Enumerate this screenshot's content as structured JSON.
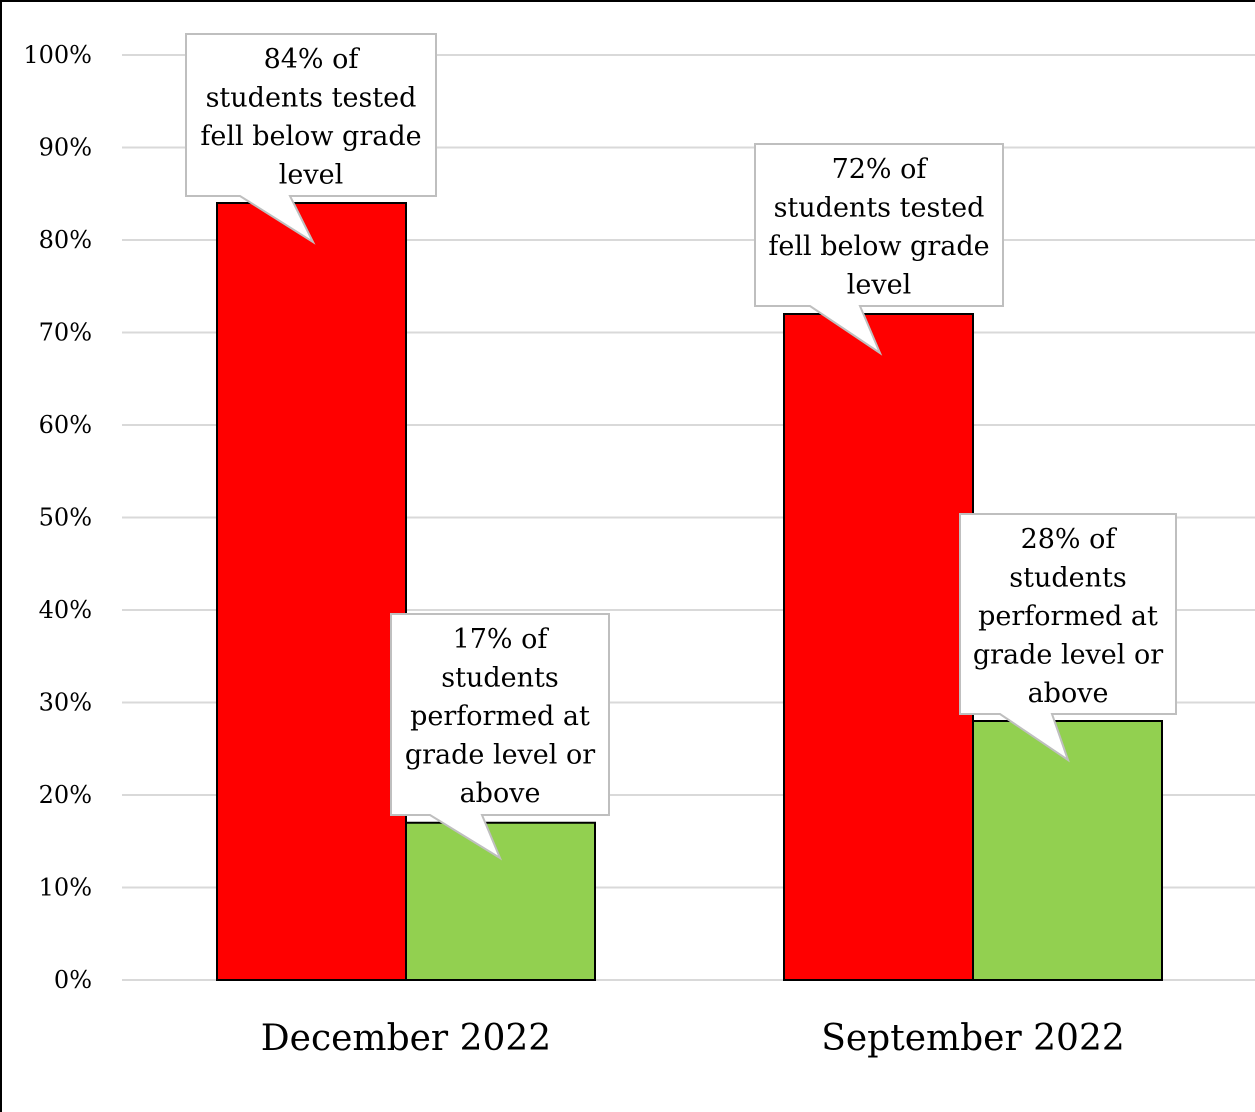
{
  "chart_data": {
    "type": "bar",
    "categories": [
      "December 2022",
      "September 2022"
    ],
    "series": [
      {
        "values": [
          84,
          72
        ],
        "color": "#ff0000"
      },
      {
        "values": [
          17,
          28
        ],
        "color": "#92d050"
      }
    ],
    "ylim": [
      0,
      100
    ],
    "yticks": [
      "0%",
      "10%",
      "20%",
      "30%",
      "40%",
      "50%",
      "60%",
      "70%",
      "80%",
      "90%",
      "100%"
    ],
    "grid": true,
    "title": "",
    "xlabel": "",
    "ylabel": "",
    "annotations": [
      {
        "category": "December 2022",
        "series": 0,
        "lines": [
          "84% of",
          "students tested",
          "fell below grade",
          "level"
        ]
      },
      {
        "category": "December 2022",
        "series": 1,
        "lines": [
          "17% of",
          "students",
          "performed at",
          "grade level or",
          "above"
        ]
      },
      {
        "category": "September 2022",
        "series": 0,
        "lines": [
          "72% of",
          "students tested",
          "fell below grade",
          "level"
        ]
      },
      {
        "category": "September 2022",
        "series": 1,
        "lines": [
          "28% of",
          "students",
          "performed at",
          "grade level or",
          "above"
        ]
      }
    ]
  }
}
